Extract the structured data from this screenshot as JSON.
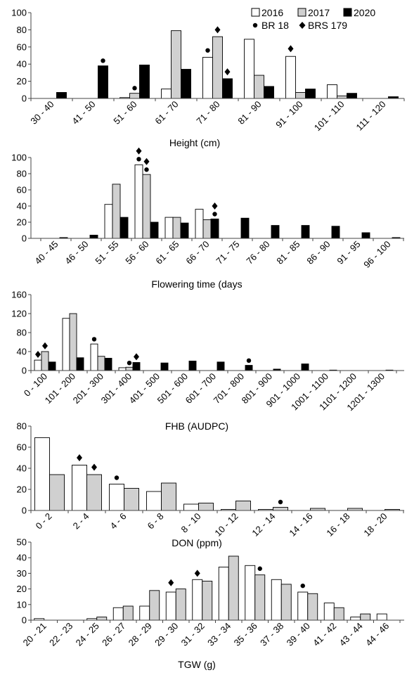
{
  "legend": {
    "years": [
      {
        "label": "2016",
        "color": "#ffffff"
      },
      {
        "label": "2017",
        "color": "#d0d0d0"
      },
      {
        "label": "2020",
        "color": "#000000"
      }
    ],
    "cultivars": [
      {
        "label": "BR 18",
        "marker": "circle"
      },
      {
        "label": "BRS 179",
        "marker": "diamond"
      }
    ]
  },
  "chart_data": [
    {
      "type": "bar",
      "xlabel": "Height (cm)",
      "ylim": [
        0,
        100
      ],
      "yticks": [
        0,
        20,
        40,
        60,
        80,
        100
      ],
      "categories": [
        "30 - 40",
        "41 - 50",
        "51 - 60",
        "61 - 70",
        "71 - 80",
        "81 - 90",
        "91 - 100",
        "101 - 110",
        "111 - 120"
      ],
      "series": [
        {
          "name": "2016",
          "values": [
            0,
            0,
            1,
            11,
            48,
            69,
            49,
            16,
            0
          ]
        },
        {
          "name": "2017",
          "values": [
            0,
            0,
            6,
            79,
            72,
            27,
            7,
            3,
            0
          ]
        },
        {
          "name": "2020",
          "values": [
            7,
            38,
            39,
            34,
            23,
            14,
            11,
            6,
            2
          ]
        }
      ],
      "markers": [
        {
          "type": "circle",
          "category": 1,
          "series": 2,
          "y": 44
        },
        {
          "type": "circle",
          "category": 2,
          "series": 1,
          "y": 12
        },
        {
          "type": "circle",
          "category": 4,
          "series": 0,
          "y": 56
        },
        {
          "type": "diamond",
          "category": 4,
          "series": 1,
          "y": 80
        },
        {
          "type": "diamond",
          "category": 4,
          "series": 2,
          "y": 31
        },
        {
          "type": "diamond",
          "category": 6,
          "series": 0,
          "y": 58
        }
      ]
    },
    {
      "type": "bar",
      "xlabel": "Flowering time (days",
      "ylim": [
        0,
        100
      ],
      "yticks": [
        0,
        20,
        40,
        60,
        80,
        100
      ],
      "categories": [
        "40 - 45",
        "46 - 50",
        "51 - 55",
        "56 - 60",
        "61 - 65",
        "66 - 70",
        "71 - 75",
        "76 - 80",
        "81 - 85",
        "86 - 90",
        "91 - 95",
        "96 - 100"
      ],
      "series": [
        {
          "name": "2016",
          "values": [
            0,
            0,
            42,
            91,
            26,
            36,
            0,
            0,
            0,
            0,
            0,
            0
          ]
        },
        {
          "name": "2017",
          "values": [
            0,
            0,
            67,
            79,
            26,
            23,
            0,
            0,
            0,
            0,
            0,
            0
          ]
        },
        {
          "name": "2020",
          "values": [
            1,
            4,
            26,
            20,
            19,
            24,
            25,
            16,
            16,
            15,
            7,
            1
          ]
        }
      ],
      "markers": [
        {
          "type": "circle",
          "category": 3,
          "series": 0,
          "y": 98
        },
        {
          "type": "diamond",
          "category": 3,
          "series": 0,
          "y": 108
        },
        {
          "type": "circle",
          "category": 3,
          "series": 1,
          "y": 85
        },
        {
          "type": "diamond",
          "category": 3,
          "series": 1,
          "y": 95
        },
        {
          "type": "circle",
          "category": 5,
          "series": 2,
          "y": 30
        },
        {
          "type": "diamond",
          "category": 5,
          "series": 2,
          "y": 40
        }
      ]
    },
    {
      "type": "bar",
      "xlabel": "FHB (AUDPC)",
      "ylim": [
        0,
        160
      ],
      "yticks": [
        0,
        40,
        80,
        120,
        160
      ],
      "categories": [
        "0 - 100",
        "101 - 200",
        "201 - 300",
        "301 - 400",
        "401 - 500",
        "501 - 600",
        "601 - 700",
        "701 - 800",
        "801 - 900",
        "901 - 1000",
        "1001 - 1100",
        "1101 - 1200",
        "1201 - 1300"
      ],
      "series": [
        {
          "name": "2016",
          "values": [
            22,
            110,
            56,
            6,
            0,
            0,
            0,
            0,
            0,
            0,
            0,
            0,
            0
          ]
        },
        {
          "name": "2017",
          "values": [
            40,
            120,
            30,
            7,
            0,
            0,
            0,
            0,
            0,
            0,
            0,
            0,
            0
          ]
        },
        {
          "name": "2020",
          "values": [
            18,
            27,
            26,
            17,
            16,
            20,
            18,
            11,
            3,
            14,
            1,
            0,
            1
          ]
        }
      ],
      "markers": [
        {
          "type": "diamond",
          "category": 0,
          "series": 0,
          "y": 34
        },
        {
          "type": "diamond",
          "category": 0,
          "series": 1,
          "y": 52
        },
        {
          "type": "circle",
          "category": 2,
          "series": 0,
          "y": 66
        },
        {
          "type": "circle",
          "category": 3,
          "series": 1,
          "y": 16
        },
        {
          "type": "diamond",
          "category": 3,
          "series": 2,
          "y": 29
        },
        {
          "type": "circle",
          "category": 7,
          "series": 2,
          "y": 21
        }
      ]
    },
    {
      "type": "bar",
      "xlabel": "DON (ppm)",
      "ylim": [
        0,
        80
      ],
      "yticks": [
        0,
        20,
        40,
        60,
        80
      ],
      "categories": [
        "0 - 2",
        "2 - 4",
        "4 - 6",
        "6 - 8",
        "8 - 10",
        "10 - 12",
        "12 - 14",
        "14 - 16",
        "16 - 18",
        "18 - 20"
      ],
      "series": [
        {
          "name": "2016",
          "values": [
            69,
            43,
            25,
            18,
            6,
            1,
            1,
            0,
            0,
            0
          ]
        },
        {
          "name": "2017",
          "values": [
            34,
            34,
            21,
            26,
            7,
            9,
            3,
            2,
            2,
            1
          ]
        }
      ],
      "markers": [
        {
          "type": "diamond",
          "category": 1,
          "series": 0,
          "y": 50
        },
        {
          "type": "diamond",
          "category": 1,
          "series": 1,
          "y": 41
        },
        {
          "type": "circle",
          "category": 2,
          "series": 0,
          "y": 31
        },
        {
          "type": "circle",
          "category": 6,
          "series": 1,
          "y": 8
        }
      ]
    },
    {
      "type": "bar",
      "xlabel": "TGW (g)",
      "ylim": [
        0,
        50
      ],
      "yticks": [
        0,
        10,
        20,
        30,
        40,
        50
      ],
      "categories": [
        "20 - 21",
        "22 - 23",
        "24 - 25",
        "26 - 27",
        "28 - 29",
        "29 - 30",
        "31 - 32",
        "33 - 34",
        "35 - 36",
        "37 - 38",
        "39 - 40",
        "41 - 42",
        "43 - 44",
        "44 - 46"
      ],
      "series": [
        {
          "name": "2016",
          "values": [
            1,
            0,
            1,
            8,
            9,
            18,
            26,
            34,
            35,
            26,
            18,
            11,
            2,
            4
          ]
        },
        {
          "name": "2017",
          "values": [
            0,
            0,
            2,
            9,
            19,
            20,
            25,
            41,
            29,
            23,
            17,
            8,
            4,
            0
          ]
        }
      ],
      "markers": [
        {
          "type": "diamond",
          "category": 5,
          "series": 0,
          "y": 24
        },
        {
          "type": "diamond",
          "category": 6,
          "series": 0,
          "y": 30
        },
        {
          "type": "circle",
          "category": 8,
          "series": 1,
          "y": 33
        },
        {
          "type": "circle",
          "category": 10,
          "series": 0,
          "y": 22
        }
      ]
    }
  ]
}
